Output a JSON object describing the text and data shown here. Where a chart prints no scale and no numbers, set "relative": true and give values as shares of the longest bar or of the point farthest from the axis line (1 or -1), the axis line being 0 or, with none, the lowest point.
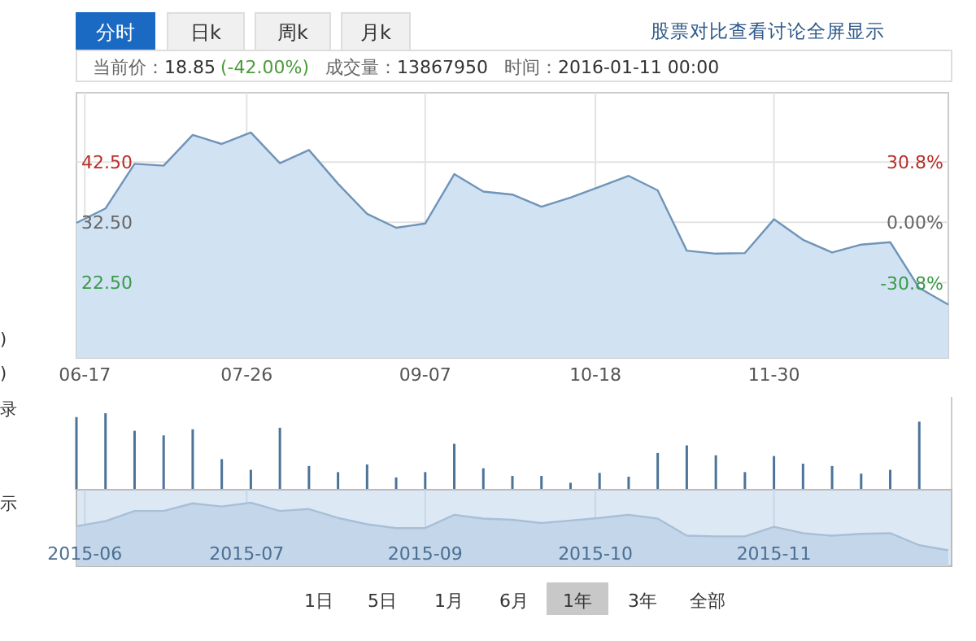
{
  "chart_data": [
    {
      "type": "other",
      "annotations": [
        "分时",
        "日k",
        "周k",
        "月k",
        "股票对比",
        "查看讨论",
        "全屏显示",
        "当前价：",
        "18.85",
        "(-42.00%)",
        "成交量：",
        "13867950",
        "时间：",
        "2016-01-11 00:00"
      ]
    },
    {
      "type": "area",
      "x": [
        "2015-06-15",
        "2015-06-22",
        "2015-06-29",
        "2015-07-06",
        "2015-07-13",
        "2015-07-20",
        "2015-07-27",
        "2015-08-03",
        "2015-08-10",
        "2015-08-17",
        "2015-08-24",
        "2015-08-31",
        "2015-09-07",
        "2015-09-14",
        "2015-09-21",
        "2015-09-28",
        "2015-10-05",
        "2015-10-12",
        "2015-10-19",
        "2015-10-26",
        "2015-11-02",
        "2015-11-09",
        "2015-11-16",
        "2015-11-23",
        "2015-11-30",
        "2015-12-07",
        "2015-12-14",
        "2015-12-21",
        "2015-12-28",
        "2016-01-04",
        "2016-01-11"
      ],
      "series": [
        {
          "color": "#6f94b8",
          "values": [
            32.4,
            34.8,
            42.2,
            41.9,
            47.0,
            45.5,
            47.4,
            42.3,
            44.5,
            38.9,
            33.9,
            31.6,
            32.3,
            40.5,
            37.6,
            37.1,
            35.1,
            36.6,
            38.4,
            40.2,
            37.8,
            27.8,
            27.3,
            27.4,
            33.0,
            29.6,
            27.5,
            28.8,
            29.2,
            21.6,
            18.85
          ]
        }
      ],
      "xlim": [
        "2015-06-15",
        "2016-01-11"
      ],
      "xticks": [
        {
          "value": "2015-06-17",
          "label": "06-17"
        },
        {
          "value": "2015-07-26",
          "label": "07-26"
        },
        {
          "value": "2015-09-07",
          "label": "09-07"
        },
        {
          "value": "2015-10-18",
          "label": "10-18"
        },
        {
          "value": "2015-11-30",
          "label": "11-30"
        }
      ],
      "ylim": [
        10,
        54
      ],
      "yticks": [
        {
          "value": 22.5,
          "label": "22.50"
        },
        {
          "value": 32.5,
          "label": "32.50"
        },
        {
          "value": 42.5,
          "label": "42.50"
        }
      ],
      "y2lim": [
        -69.2,
        66.2
      ],
      "y2ticks": [
        {
          "value": -30.8,
          "label": "-30.8%"
        },
        {
          "value": 0,
          "label": "0.00%"
        },
        {
          "value": 30.8,
          "label": "30.8%"
        }
      ],
      "grid": true
    },
    {
      "type": "bar",
      "x": [
        "2015-06-15",
        "2015-06-22",
        "2015-06-29",
        "2015-07-06",
        "2015-07-13",
        "2015-07-20",
        "2015-07-27",
        "2015-08-03",
        "2015-08-10",
        "2015-08-17",
        "2015-08-24",
        "2015-08-31",
        "2015-09-07",
        "2015-09-14",
        "2015-09-21",
        "2015-09-28",
        "2015-10-05",
        "2015-10-12",
        "2015-10-19",
        "2015-10-26",
        "2015-11-02",
        "2015-11-09",
        "2015-11-16",
        "2015-11-23",
        "2015-11-30",
        "2015-12-07",
        "2015-12-14",
        "2015-12-21",
        "2015-12-28",
        "2016-01-04"
      ],
      "values": [
        0.95,
        1,
        0.77,
        0.71,
        0.79,
        0.4,
        0.26,
        0.81,
        0.31,
        0.23,
        0.33,
        0.16,
        0.23,
        0.6,
        0.28,
        0.18,
        0.18,
        0.09,
        0.22,
        0.17,
        0.48,
        0.58,
        0.45,
        0.23,
        0.44,
        0.34,
        0.31,
        0.21,
        0.26,
        0.89
      ],
      "color": "#4d7399",
      "relative": true,
      "xlim": [
        "2015-06-15",
        "2016-01-11"
      ],
      "tick_labels": false
    },
    {
      "type": "area",
      "x": [
        "2015-06-15",
        "2015-06-22",
        "2015-06-29",
        "2015-07-06",
        "2015-07-13",
        "2015-07-20",
        "2015-07-27",
        "2015-08-03",
        "2015-08-10",
        "2015-08-17",
        "2015-08-24",
        "2015-08-31",
        "2015-09-07",
        "2015-09-14",
        "2015-09-21",
        "2015-09-28",
        "2015-10-05",
        "2015-10-12",
        "2015-10-19",
        "2015-10-26",
        "2015-11-02",
        "2015-11-09",
        "2015-11-16",
        "2015-11-23",
        "2015-11-30",
        "2015-12-07",
        "2015-12-14",
        "2015-12-21",
        "2015-12-28",
        "2016-01-04",
        "2016-01-11"
      ],
      "series": [
        {
          "color": "#c3d6ea",
          "values": [
            0.63,
            0.71,
            0.87,
            0.87,
            0.99,
            0.94,
            1,
            0.87,
            0.9,
            0.76,
            0.66,
            0.6,
            0.6,
            0.81,
            0.75,
            0.73,
            0.68,
            0.72,
            0.76,
            0.81,
            0.75,
            0.48,
            0.47,
            0.47,
            0.62,
            0.52,
            0.48,
            0.51,
            0.52,
            0.33,
            0.25
          ]
        }
      ],
      "relative": true,
      "grid": "x",
      "xlim": [
        "2015-06-15",
        "2016-01-11"
      ],
      "xticks": [
        {
          "value": "2015-06-17",
          "label": "2015-06"
        },
        {
          "value": "2015-07-26",
          "label": "2015-07"
        },
        {
          "value": "2015-09-07",
          "label": "2015-09"
        },
        {
          "value": "2015-10-18",
          "label": "2015-10"
        },
        {
          "value": "2015-11-30",
          "label": "2015-11"
        }
      ],
      "tick_labels": "x"
    },
    {
      "type": "other",
      "annotations": [
        "1日",
        "5日",
        "1月",
        "6月",
        "1年",
        "3年",
        "全部"
      ]
    },
    {
      "type": "other",
      "annotations": [
        ")",
        ")",
        "录",
        "示"
      ]
    }
  ]
}
